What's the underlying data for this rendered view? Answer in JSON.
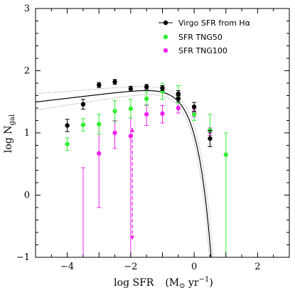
{
  "chart_data": {
    "type": "scatter",
    "xlabel_main": "log SFR",
    "xlabel_unit_open": "(M",
    "xlabel_unit_sun": "⊙",
    "xlabel_unit_rest": " yr",
    "xlabel_unit_exp": "−1",
    "xlabel_unit_close": ")",
    "ylabel_main": "log N",
    "ylabel_sub": "gal",
    "xlim": [
      -5,
      3
    ],
    "ylim": [
      -1,
      3
    ],
    "xticks": [
      {
        "v": -4,
        "label": "−4"
      },
      {
        "v": -2,
        "label": "−2"
      },
      {
        "v": 0,
        "label": "0"
      },
      {
        "v": 2,
        "label": "2"
      }
    ],
    "yticks": [
      {
        "v": -1,
        "label": "−1"
      },
      {
        "v": 0,
        "label": "0"
      },
      {
        "v": 1,
        "label": "1"
      },
      {
        "v": 2,
        "label": "2"
      },
      {
        "v": 3,
        "label": "3"
      }
    ],
    "legend": [
      {
        "label": "Virgo SFR from Hα",
        "color": "#000000",
        "line": true
      },
      {
        "label": "SFR TNG50",
        "color": "#33ee33",
        "line": false
      },
      {
        "label": "SFR TNG100",
        "color": "#ee22ee",
        "line": false
      }
    ],
    "series": [
      {
        "key": "virgo",
        "color": "#000000",
        "points": [
          {
            "x": -4.0,
            "y": 1.12,
            "lo": 1.02,
            "hi": 1.22
          },
          {
            "x": -3.5,
            "y": 1.46,
            "lo": 1.38,
            "hi": 1.54
          },
          {
            "x": -3.0,
            "y": 1.77,
            "lo": 1.73,
            "hi": 1.81
          },
          {
            "x": -2.5,
            "y": 1.82,
            "lo": 1.78,
            "hi": 1.86
          },
          {
            "x": -2.0,
            "y": 1.71,
            "lo": 1.67,
            "hi": 1.75
          },
          {
            "x": -1.5,
            "y": 1.74,
            "lo": 1.7,
            "hi": 1.78
          },
          {
            "x": -1.0,
            "y": 1.72,
            "lo": 1.68,
            "hi": 1.76
          },
          {
            "x": -0.5,
            "y": 1.63,
            "lo": 1.58,
            "hi": 1.68
          },
          {
            "x": -0.5,
            "y": 1.55,
            "lo": 1.5,
            "hi": 1.6
          },
          {
            "x": 0.0,
            "y": 1.42,
            "lo": 1.35,
            "hi": 1.49
          },
          {
            "x": 0.5,
            "y": 0.91,
            "lo": 0.78,
            "hi": 1.04
          }
        ]
      },
      {
        "key": "tng50",
        "color": "#33ee33",
        "points": [
          {
            "x": -4.0,
            "y": 0.82,
            "lo": 0.72,
            "hi": 0.92
          },
          {
            "x": -3.5,
            "y": 1.13,
            "lo": 1.03,
            "hi": 1.23
          },
          {
            "x": -3.0,
            "y": 1.14,
            "lo": 0.98,
            "hi": 1.3
          },
          {
            "x": -2.5,
            "y": 1.35,
            "lo": 1.18,
            "hi": 1.52
          },
          {
            "x": -2.0,
            "y": 1.39,
            "lo": 1.24,
            "hi": 1.54
          },
          {
            "x": -1.5,
            "y": 1.55,
            "lo": 1.44,
            "hi": 1.66
          },
          {
            "x": -1.0,
            "y": 1.67,
            "lo": 1.54,
            "hi": 1.8
          },
          {
            "x": -0.5,
            "y": 1.62,
            "lo": 1.48,
            "hi": 1.76
          },
          {
            "x": 0.0,
            "y": 1.3,
            "lo": 1.2,
            "hi": 1.4
          },
          {
            "x": 0.5,
            "y": 1.04,
            "lo": 0.78,
            "hi": 1.3
          },
          {
            "x": 1.0,
            "y": 0.65,
            "lo": -1.0,
            "hi": 1.0
          }
        ]
      },
      {
        "key": "tng100",
        "color": "#ee22ee",
        "points": [
          {
            "x": -3.5,
            "y": -1.0,
            "lo": -1.0,
            "hi": 0.44
          },
          {
            "x": -3.0,
            "y": 0.67,
            "lo": -0.2,
            "hi": 1.13
          },
          {
            "x": -2.5,
            "y": 1.0,
            "lo": 0.75,
            "hi": 1.2
          },
          {
            "x": -2.0,
            "y": 0.95,
            "lo": -1.0,
            "hi": 1.24
          },
          {
            "x": -1.5,
            "y": 1.3,
            "lo": 1.12,
            "hi": 1.45
          },
          {
            "x": -1.0,
            "y": 1.31,
            "lo": 1.16,
            "hi": 1.44
          },
          {
            "x": -0.5,
            "y": 1.4,
            "lo": 1.32,
            "hi": 1.48
          },
          {
            "x": 0.0,
            "y": 1.32,
            "lo": 1.26,
            "hi": 1.38
          },
          {
            "x": 0.5,
            "y": 1.02,
            "lo": 0.96,
            "hi": 1.08
          }
        ]
      }
    ],
    "dashed_arrow": {
      "x": -1.95,
      "y_top": 1.08,
      "y_bottom": -0.72,
      "color": "#ee22ee"
    },
    "fit_curve": {
      "phi": 1.78,
      "alpha": -0.94,
      "x_star": -0.28,
      "color": "#000000"
    },
    "fit_bounds": [
      {
        "phi": 1.74,
        "alpha": -0.92,
        "x_star": -0.33
      },
      {
        "phi": 1.82,
        "alpha": -0.96,
        "x_star": -0.22
      }
    ]
  }
}
